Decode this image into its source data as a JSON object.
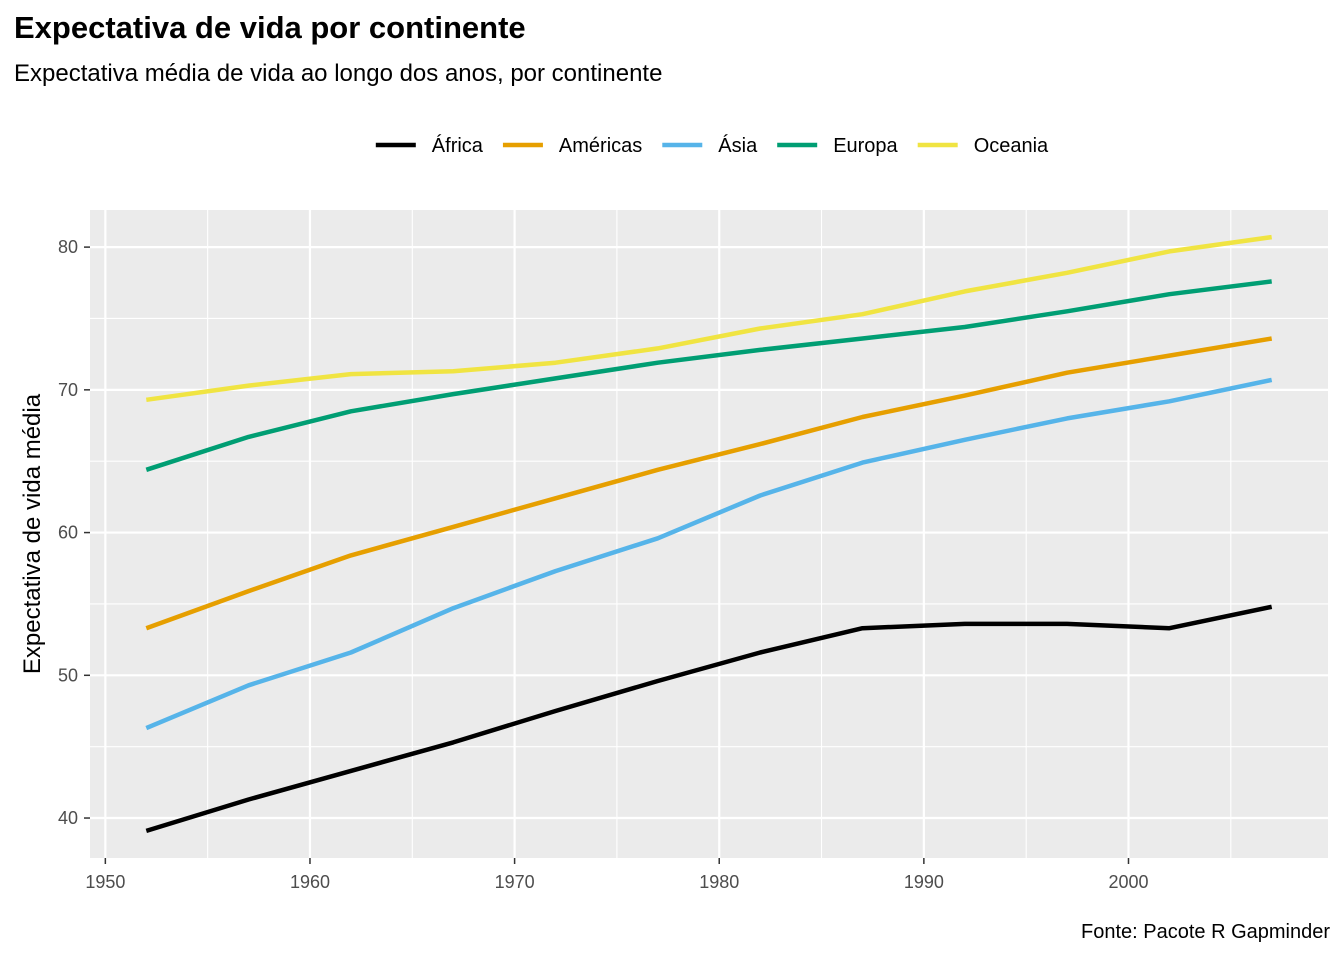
{
  "chart_data": {
    "type": "line",
    "title": "Expectativa de vida por continente",
    "subtitle": "Expectativa média de vida ao longo dos anos, por continente",
    "caption": "Fonte: Pacote R Gapminder",
    "xlabel": "",
    "ylabel": "Expectativa de vida média",
    "xlim": [
      1949.25,
      2009.75
    ],
    "ylim": [
      37.2,
      82.6
    ],
    "x_ticks": [
      1950,
      1960,
      1970,
      1980,
      1990,
      2000
    ],
    "y_ticks": [
      40,
      50,
      60,
      70,
      80
    ],
    "grid": true,
    "legend_position": "top",
    "x": [
      1952,
      1957,
      1962,
      1967,
      1972,
      1977,
      1982,
      1987,
      1992,
      1997,
      2002,
      2007
    ],
    "series": [
      {
        "name": "África",
        "color": "#000000",
        "values": [
          39.1,
          41.3,
          43.3,
          45.3,
          47.5,
          49.6,
          51.6,
          53.3,
          53.6,
          53.6,
          53.3,
          54.8
        ]
      },
      {
        "name": "Américas",
        "color": "#E69F00",
        "values": [
          53.3,
          55.9,
          58.4,
          60.4,
          62.4,
          64.4,
          66.2,
          68.1,
          69.6,
          71.2,
          72.4,
          73.6
        ]
      },
      {
        "name": "Ásia",
        "color": "#56B4E9",
        "values": [
          46.3,
          49.3,
          51.6,
          54.7,
          57.3,
          59.6,
          62.6,
          64.9,
          66.5,
          68.0,
          69.2,
          70.7
        ]
      },
      {
        "name": "Europa",
        "color": "#009E73",
        "values": [
          64.4,
          66.7,
          68.5,
          69.7,
          70.8,
          71.9,
          72.8,
          73.6,
          74.4,
          75.5,
          76.7,
          77.6
        ]
      },
      {
        "name": "Oceania",
        "color": "#F0E442",
        "values": [
          69.3,
          70.3,
          71.1,
          71.3,
          71.9,
          72.9,
          74.3,
          75.3,
          76.9,
          78.2,
          79.7,
          80.7
        ]
      }
    ]
  }
}
